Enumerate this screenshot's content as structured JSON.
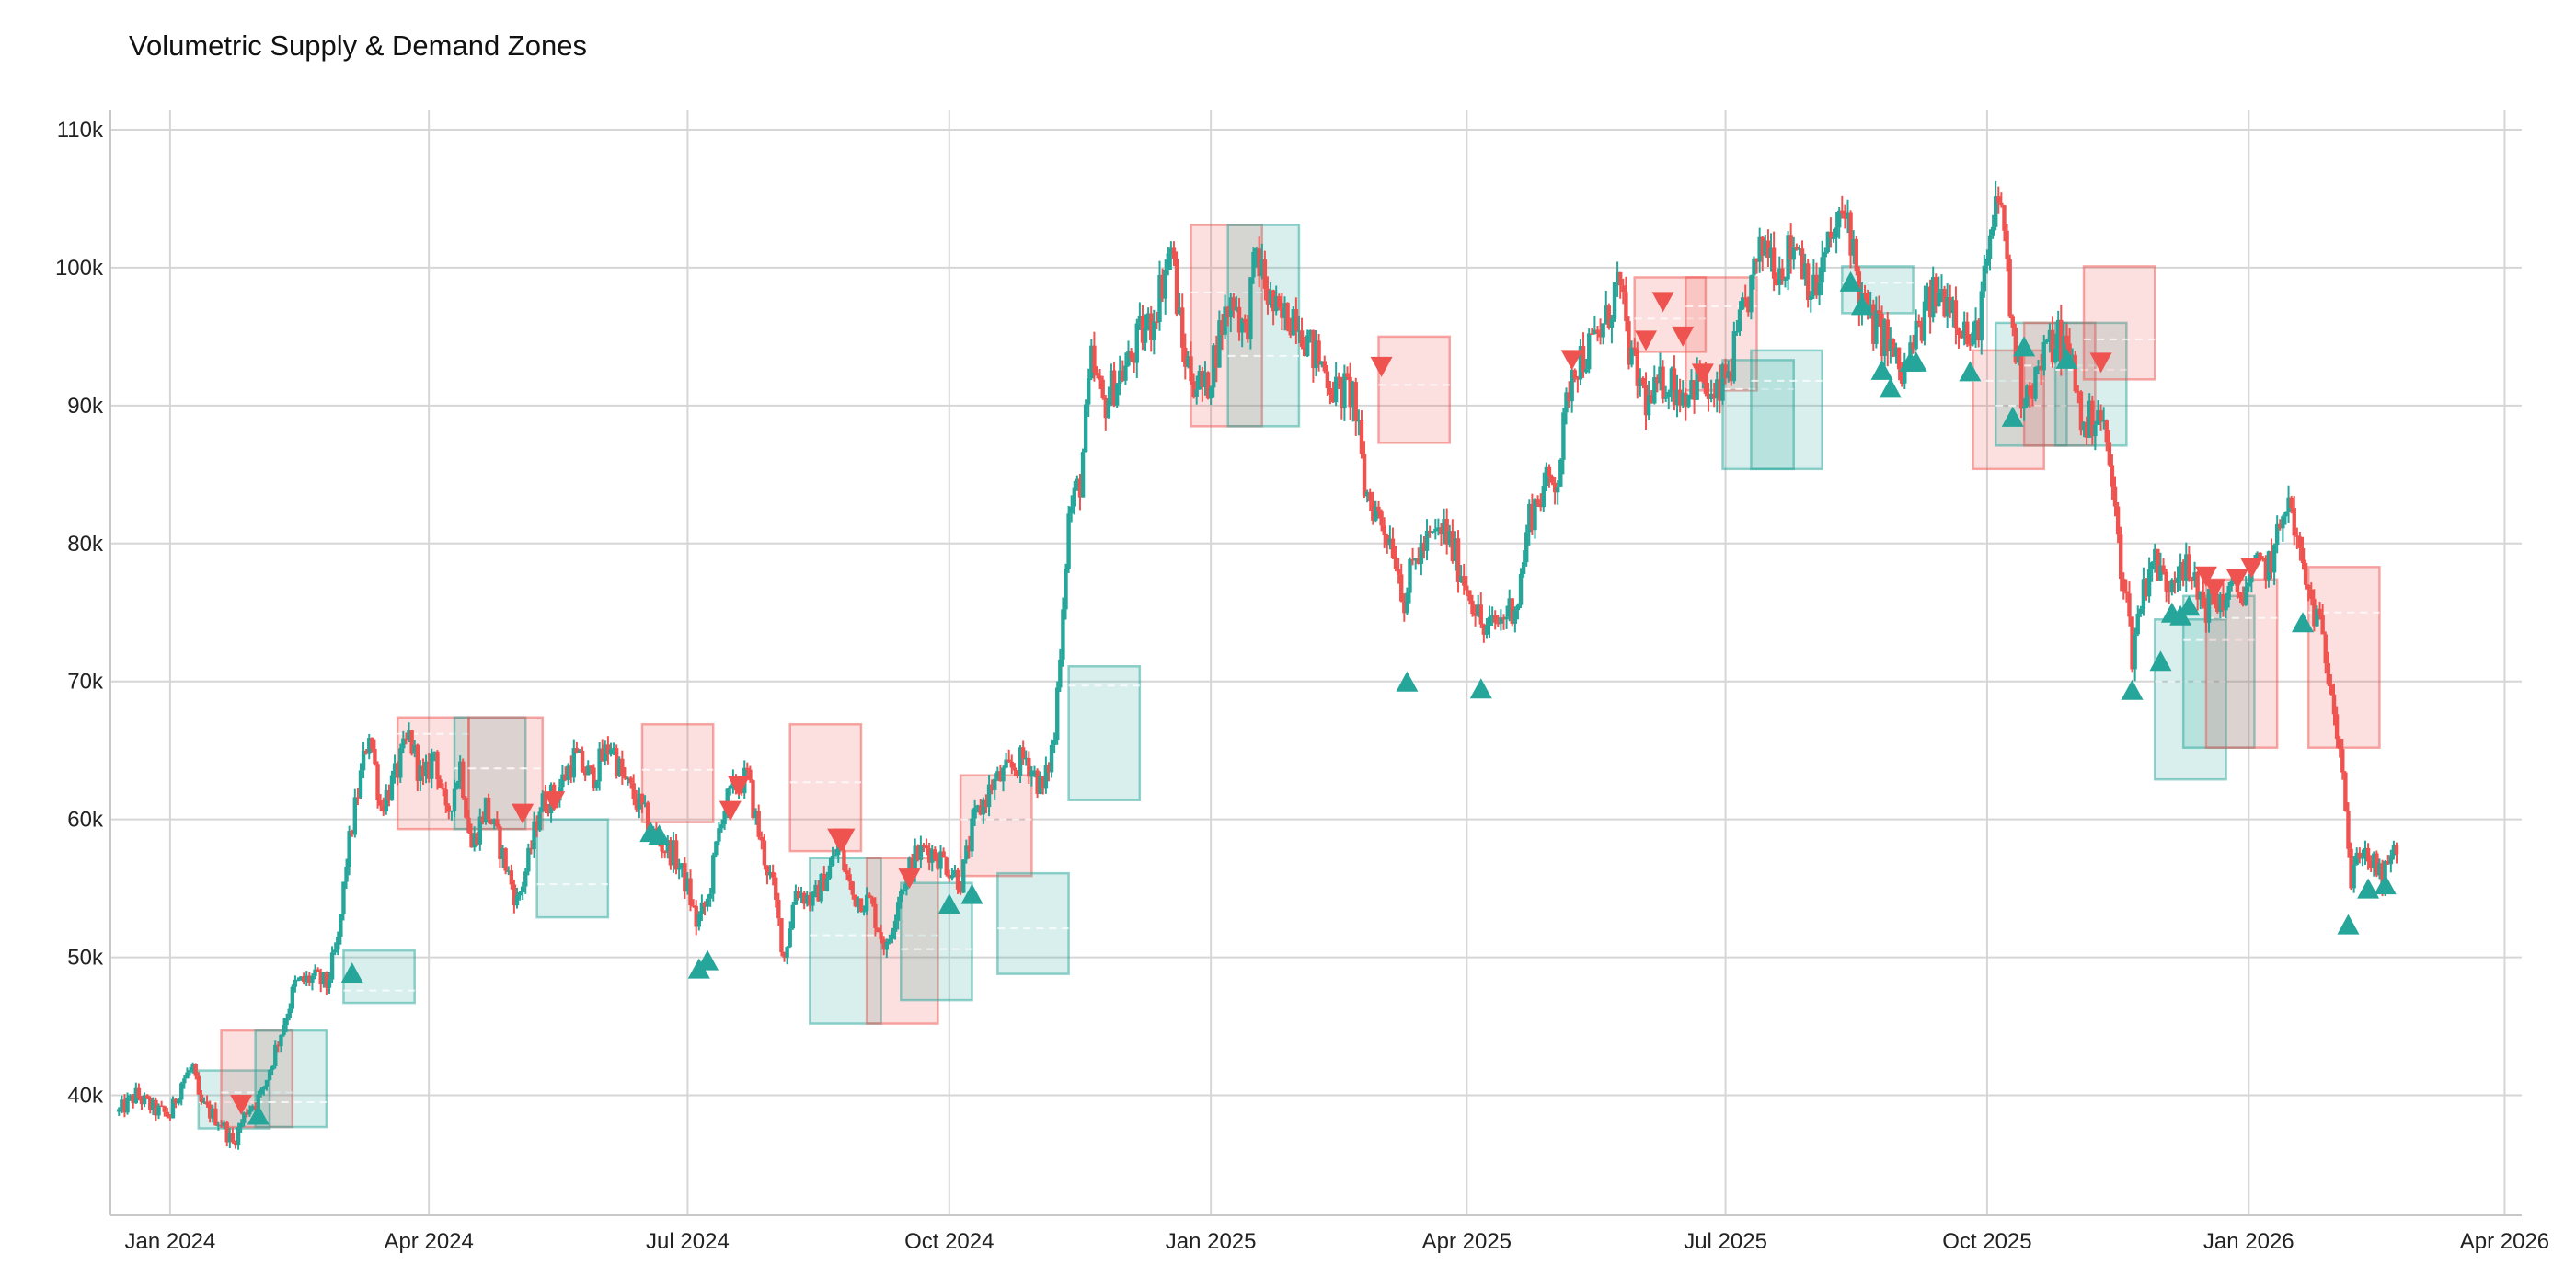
{
  "chart_data": {
    "type": "candlestick",
    "title": "Volumetric Supply & Demand Zones",
    "xlabel": "",
    "ylabel": "",
    "x_origin": "2024-01-01",
    "x_units": "days since x_origin",
    "xlim": [
      -21,
      827
    ],
    "ylim": [
      31.3,
      111.4
    ],
    "grid": true,
    "colors": {
      "up": "#26a69a",
      "down": "#ef5350",
      "supply": "#ef5350",
      "demand": "#26a69a",
      "poc": "#ffffff"
    },
    "y_ticks": [
      {
        "value": 40,
        "label": "40k"
      },
      {
        "value": 50,
        "label": "50k"
      },
      {
        "value": 60,
        "label": "60k"
      },
      {
        "value": 70,
        "label": "70k"
      },
      {
        "value": 80,
        "label": "80k"
      },
      {
        "value": 90,
        "label": "90k"
      },
      {
        "value": 100,
        "label": "100k"
      },
      {
        "value": 110,
        "label": "110k"
      }
    ],
    "x_ticks": [
      {
        "value": 0,
        "label": "Jan 2024"
      },
      {
        "value": 91,
        "label": "Apr 2024"
      },
      {
        "value": 182,
        "label": "Jul 2024"
      },
      {
        "value": 274,
        "label": "Oct 2024"
      },
      {
        "value": 366,
        "label": "Jan 2025"
      },
      {
        "value": 456,
        "label": "Apr 2025"
      },
      {
        "value": 547,
        "label": "Jul 2025"
      },
      {
        "value": 639,
        "label": "Oct 2025"
      },
      {
        "value": 731,
        "label": "Jan 2026"
      },
      {
        "value": 821,
        "label": "Apr 2026"
      }
    ],
    "price_path_close_k": [
      [
        -18,
        38.8
      ],
      [
        -12,
        40
      ],
      [
        -6,
        39
      ],
      [
        0,
        38.5
      ],
      [
        4,
        41
      ],
      [
        8,
        42
      ],
      [
        10,
        39.5
      ],
      [
        18,
        38
      ],
      [
        22,
        36.5
      ],
      [
        27,
        39
      ],
      [
        32,
        40
      ],
      [
        38,
        44
      ],
      [
        44,
        48
      ],
      [
        50,
        48.5
      ],
      [
        55,
        48
      ],
      [
        59,
        51
      ],
      [
        62,
        57
      ],
      [
        66,
        62
      ],
      [
        70,
        66.5
      ],
      [
        74,
        61
      ],
      [
        79,
        63
      ],
      [
        84,
        66
      ],
      [
        89,
        62.5
      ],
      [
        93,
        65
      ],
      [
        97,
        60
      ],
      [
        102,
        64
      ],
      [
        106,
        58
      ],
      [
        111,
        61
      ],
      [
        116,
        58
      ],
      [
        122,
        54
      ],
      [
        126,
        57
      ],
      [
        130,
        61
      ],
      [
        136,
        62
      ],
      [
        142,
        64.5
      ],
      [
        148,
        63
      ],
      [
        155,
        65.5
      ],
      [
        159,
        63
      ],
      [
        165,
        61
      ],
      [
        171,
        58.5
      ],
      [
        177,
        57.5
      ],
      [
        182,
        55
      ],
      [
        185,
        52.5
      ],
      [
        189,
        54
      ],
      [
        194,
        60.5
      ],
      [
        199,
        62.5
      ],
      [
        203,
        63
      ],
      [
        208,
        58
      ],
      [
        212,
        55
      ],
      [
        216,
        50
      ],
      [
        220,
        55
      ],
      [
        226,
        54
      ],
      [
        232,
        56.5
      ],
      [
        235,
        58
      ],
      [
        240,
        54.5
      ],
      [
        246,
        54
      ],
      [
        252,
        50.5
      ],
      [
        256,
        54.5
      ],
      [
        261,
        57
      ],
      [
        266,
        58
      ],
      [
        272,
        57
      ],
      [
        278,
        55.5
      ],
      [
        283,
        60
      ],
      [
        289,
        62.5
      ],
      [
        295,
        63.5
      ],
      [
        301,
        64.5
      ],
      [
        307,
        62
      ],
      [
        311,
        66
      ],
      [
        314,
        76
      ],
      [
        316,
        82
      ],
      [
        320,
        84.5
      ],
      [
        324,
        93
      ],
      [
        328,
        90
      ],
      [
        333,
        92
      ],
      [
        337,
        93
      ],
      [
        341,
        95
      ],
      [
        345,
        96
      ],
      [
        350,
        100
      ],
      [
        352,
        101.5
      ],
      [
        356,
        94
      ],
      [
        360,
        92
      ],
      [
        364,
        91
      ],
      [
        370,
        96
      ],
      [
        374,
        98
      ],
      [
        378,
        95
      ],
      [
        382,
        101
      ],
      [
        386,
        98
      ],
      [
        390,
        96
      ],
      [
        396,
        97
      ],
      [
        401,
        94
      ],
      [
        405,
        93
      ],
      [
        410,
        91
      ],
      [
        416,
        91
      ],
      [
        420,
        84
      ],
      [
        425,
        82
      ],
      [
        430,
        80
      ],
      [
        434,
        76
      ],
      [
        438,
        79
      ],
      [
        442,
        80
      ],
      [
        448,
        81
      ],
      [
        454,
        78
      ],
      [
        458,
        76
      ],
      [
        462,
        73.5
      ],
      [
        468,
        74.5
      ],
      [
        474,
        76
      ],
      [
        478,
        82
      ],
      [
        483,
        84
      ],
      [
        488,
        85
      ],
      [
        493,
        93
      ],
      [
        499,
        94
      ],
      [
        505,
        96
      ],
      [
        509,
        99
      ],
      [
        514,
        93
      ],
      [
        520,
        90
      ],
      [
        526,
        92
      ],
      [
        532,
        91
      ],
      [
        538,
        92
      ],
      [
        543,
        90
      ],
      [
        549,
        93
      ],
      [
        555,
        98
      ],
      [
        561,
        102
      ],
      [
        566,
        100
      ],
      [
        572,
        102
      ],
      [
        578,
        98
      ],
      [
        584,
        102
      ],
      [
        590,
        104
      ],
      [
        594,
        98
      ],
      [
        598,
        96
      ],
      [
        603,
        95
      ],
      [
        609,
        92
      ],
      [
        614,
        95
      ],
      [
        620,
        98
      ],
      [
        626,
        98
      ],
      [
        630,
        96
      ],
      [
        634,
        94
      ],
      [
        639,
        100
      ],
      [
        642,
        104
      ],
      [
        644,
        105
      ],
      [
        647,
        97
      ],
      [
        651,
        91
      ],
      [
        656,
        92
      ],
      [
        660,
        94
      ],
      [
        664,
        95
      ],
      [
        669,
        93
      ],
      [
        673,
        88
      ],
      [
        678,
        90
      ],
      [
        682,
        86
      ],
      [
        685,
        80
      ],
      [
        688,
        76
      ],
      [
        690,
        72
      ],
      [
        693,
        76
      ],
      [
        697,
        79
      ],
      [
        702,
        77
      ],
      [
        707,
        79
      ],
      [
        711,
        77
      ],
      [
        716,
        75.5
      ],
      [
        722,
        76
      ],
      [
        728,
        76.5
      ],
      [
        734,
        78
      ],
      [
        740,
        79
      ],
      [
        744,
        83.5
      ],
      [
        747,
        81
      ],
      [
        751,
        77
      ],
      [
        755,
        74.5
      ],
      [
        760,
        70
      ],
      [
        764,
        64
      ],
      [
        767,
        55
      ],
      [
        770,
        58
      ],
      [
        774,
        57
      ],
      [
        778,
        55.5
      ],
      [
        783,
        58
      ]
    ],
    "zones": [
      {
        "type": "demand",
        "start": 10,
        "end": 35,
        "top": 41.8,
        "bottom": 37.6,
        "poc": 39.5
      },
      {
        "type": "supply",
        "start": 18,
        "end": 43,
        "top": 44.7,
        "bottom": 37.7,
        "poc": 40.2
      },
      {
        "type": "demand",
        "start": 30,
        "end": 55,
        "top": 44.7,
        "bottom": 37.7,
        "poc": 39.5
      },
      {
        "type": "demand",
        "start": 61,
        "end": 86,
        "top": 50.5,
        "bottom": 46.7,
        "poc": 47.6
      },
      {
        "type": "supply",
        "start": 80,
        "end": 105,
        "top": 67.4,
        "bottom": 59.3,
        "poc": 66.2
      },
      {
        "type": "demand",
        "start": 100,
        "end": 125,
        "top": 67.4,
        "bottom": 59.3,
        "poc": 63.7
      },
      {
        "type": "supply",
        "start": 105,
        "end": 131,
        "top": 67.4,
        "bottom": 59.3,
        "poc": 63.7
      },
      {
        "type": "demand",
        "start": 129,
        "end": 154,
        "top": 60.0,
        "bottom": 52.9,
        "poc": 55.3
      },
      {
        "type": "supply",
        "start": 166,
        "end": 191,
        "top": 66.9,
        "bottom": 59.8,
        "poc": 63.6
      },
      {
        "type": "supply",
        "start": 218,
        "end": 243,
        "top": 66.9,
        "bottom": 57.7,
        "poc": 62.7
      },
      {
        "type": "demand",
        "start": 225,
        "end": 250,
        "top": 57.2,
        "bottom": 45.2,
        "poc": 51.6
      },
      {
        "type": "supply",
        "start": 245,
        "end": 270,
        "top": 57.2,
        "bottom": 45.2,
        "poc": 51.6
      },
      {
        "type": "demand",
        "start": 257,
        "end": 282,
        "top": 55.4,
        "bottom": 46.9,
        "poc": 50.6
      },
      {
        "type": "supply",
        "start": 278,
        "end": 303,
        "top": 63.2,
        "bottom": 55.9,
        "poc": 60.0
      },
      {
        "type": "demand",
        "start": 291,
        "end": 316,
        "top": 56.1,
        "bottom": 48.8,
        "poc": 52.1
      },
      {
        "type": "demand",
        "start": 316,
        "end": 341,
        "top": 71.1,
        "bottom": 61.4,
        "poc": 69.7
      },
      {
        "type": "supply",
        "start": 359,
        "end": 384,
        "top": 103.1,
        "bottom": 88.5,
        "poc": 98.2
      },
      {
        "type": "demand",
        "start": 372,
        "end": 397,
        "top": 103.1,
        "bottom": 88.5,
        "poc": 93.6
      },
      {
        "type": "supply",
        "start": 425,
        "end": 450,
        "top": 95.0,
        "bottom": 87.3,
        "poc": 91.5
      },
      {
        "type": "supply",
        "start": 515,
        "end": 540,
        "top": 99.3,
        "bottom": 93.9,
        "poc": 96.3
      },
      {
        "type": "supply",
        "start": 533,
        "end": 558,
        "top": 99.3,
        "bottom": 91.1,
        "poc": 97.2
      },
      {
        "type": "demand",
        "start": 546,
        "end": 571,
        "top": 93.3,
        "bottom": 85.4,
        "poc": 91.2
      },
      {
        "type": "demand",
        "start": 556,
        "end": 581,
        "top": 94.0,
        "bottom": 85.4,
        "poc": 91.8
      },
      {
        "type": "demand",
        "start": 588,
        "end": 613,
        "top": 100.1,
        "bottom": 96.7,
        "poc": 98.9
      },
      {
        "type": "supply",
        "start": 634,
        "end": 659,
        "top": 94.0,
        "bottom": 85.4,
        "poc": 91.8
      },
      {
        "type": "demand",
        "start": 642,
        "end": 667,
        "top": 96.0,
        "bottom": 87.1,
        "poc": 90.0
      },
      {
        "type": "supply",
        "start": 652,
        "end": 677,
        "top": 96.0,
        "bottom": 87.1,
        "poc": 92.9
      },
      {
        "type": "demand",
        "start": 663,
        "end": 688,
        "top": 96.0,
        "bottom": 87.1,
        "poc": 92.6
      },
      {
        "type": "supply",
        "start": 673,
        "end": 698,
        "top": 100.1,
        "bottom": 91.9,
        "poc": 94.8
      },
      {
        "type": "demand",
        "start": 698,
        "end": 723,
        "top": 74.5,
        "bottom": 62.9,
        "poc": 70.0
      },
      {
        "type": "demand",
        "start": 708,
        "end": 733,
        "top": 76.2,
        "bottom": 65.2,
        "poc": 73.0
      },
      {
        "type": "supply",
        "start": 716,
        "end": 741,
        "top": 77.4,
        "bottom": 65.2,
        "poc": 74.6
      },
      {
        "type": "supply",
        "start": 752,
        "end": 777,
        "top": 78.3,
        "bottom": 65.2,
        "poc": 75.0
      }
    ],
    "signals": [
      {
        "type": "down",
        "day": 25,
        "price": 39.3
      },
      {
        "type": "up",
        "day": 31,
        "price": 38.6
      },
      {
        "type": "up",
        "day": 64,
        "price": 48.9
      },
      {
        "type": "down",
        "day": 124,
        "price": 60.4
      },
      {
        "type": "down",
        "day": 135,
        "price": 61.3
      },
      {
        "type": "up",
        "day": 169,
        "price": 59.1
      },
      {
        "type": "up",
        "day": 172,
        "price": 58.9
      },
      {
        "type": "down",
        "day": 197,
        "price": 60.6
      },
      {
        "type": "down",
        "day": 200,
        "price": 62.4
      },
      {
        "type": "up",
        "day": 186,
        "price": 49.2
      },
      {
        "type": "up",
        "day": 189,
        "price": 49.8
      },
      {
        "type": "down",
        "day": 235,
        "price": 58.6
      },
      {
        "type": "down",
        "day": 237,
        "price": 58.6
      },
      {
        "type": "down",
        "day": 260,
        "price": 55.7
      },
      {
        "type": "up",
        "day": 274,
        "price": 53.9
      },
      {
        "type": "up",
        "day": 282,
        "price": 54.6
      },
      {
        "type": "down",
        "day": 426,
        "price": 92.8
      },
      {
        "type": "up",
        "day": 435,
        "price": 70.0
      },
      {
        "type": "up",
        "day": 461,
        "price": 69.5
      },
      {
        "type": "down",
        "day": 493,
        "price": 93.3
      },
      {
        "type": "down",
        "day": 519,
        "price": 94.7
      },
      {
        "type": "down",
        "day": 525,
        "price": 97.5
      },
      {
        "type": "down",
        "day": 532,
        "price": 95.0
      },
      {
        "type": "down",
        "day": 539,
        "price": 92.3
      },
      {
        "type": "up",
        "day": 591,
        "price": 99.0
      },
      {
        "type": "up",
        "day": 595,
        "price": 97.3
      },
      {
        "type": "up",
        "day": 602,
        "price": 92.6
      },
      {
        "type": "up",
        "day": 605,
        "price": 91.3
      },
      {
        "type": "up",
        "day": 612,
        "price": 93.2
      },
      {
        "type": "up",
        "day": 614,
        "price": 93.2
      },
      {
        "type": "up",
        "day": 633,
        "price": 92.5
      },
      {
        "type": "up",
        "day": 648,
        "price": 89.2
      },
      {
        "type": "up",
        "day": 652,
        "price": 94.3
      },
      {
        "type": "up",
        "day": 667,
        "price": 93.4
      },
      {
        "type": "down",
        "day": 679,
        "price": 93.1
      },
      {
        "type": "up",
        "day": 690,
        "price": 69.4
      },
      {
        "type": "up",
        "day": 700,
        "price": 71.5
      },
      {
        "type": "up",
        "day": 704,
        "price": 75.0
      },
      {
        "type": "up",
        "day": 707,
        "price": 74.8
      },
      {
        "type": "up",
        "day": 710,
        "price": 75.5
      },
      {
        "type": "down",
        "day": 716,
        "price": 77.6
      },
      {
        "type": "down",
        "day": 719,
        "price": 76.7
      },
      {
        "type": "down",
        "day": 727,
        "price": 77.4
      },
      {
        "type": "down",
        "day": 732,
        "price": 78.2
      },
      {
        "type": "up",
        "day": 750,
        "price": 74.3
      },
      {
        "type": "up",
        "day": 766,
        "price": 52.4
      },
      {
        "type": "up",
        "day": 773,
        "price": 55.0
      },
      {
        "type": "up",
        "day": 779,
        "price": 55.3
      }
    ]
  }
}
